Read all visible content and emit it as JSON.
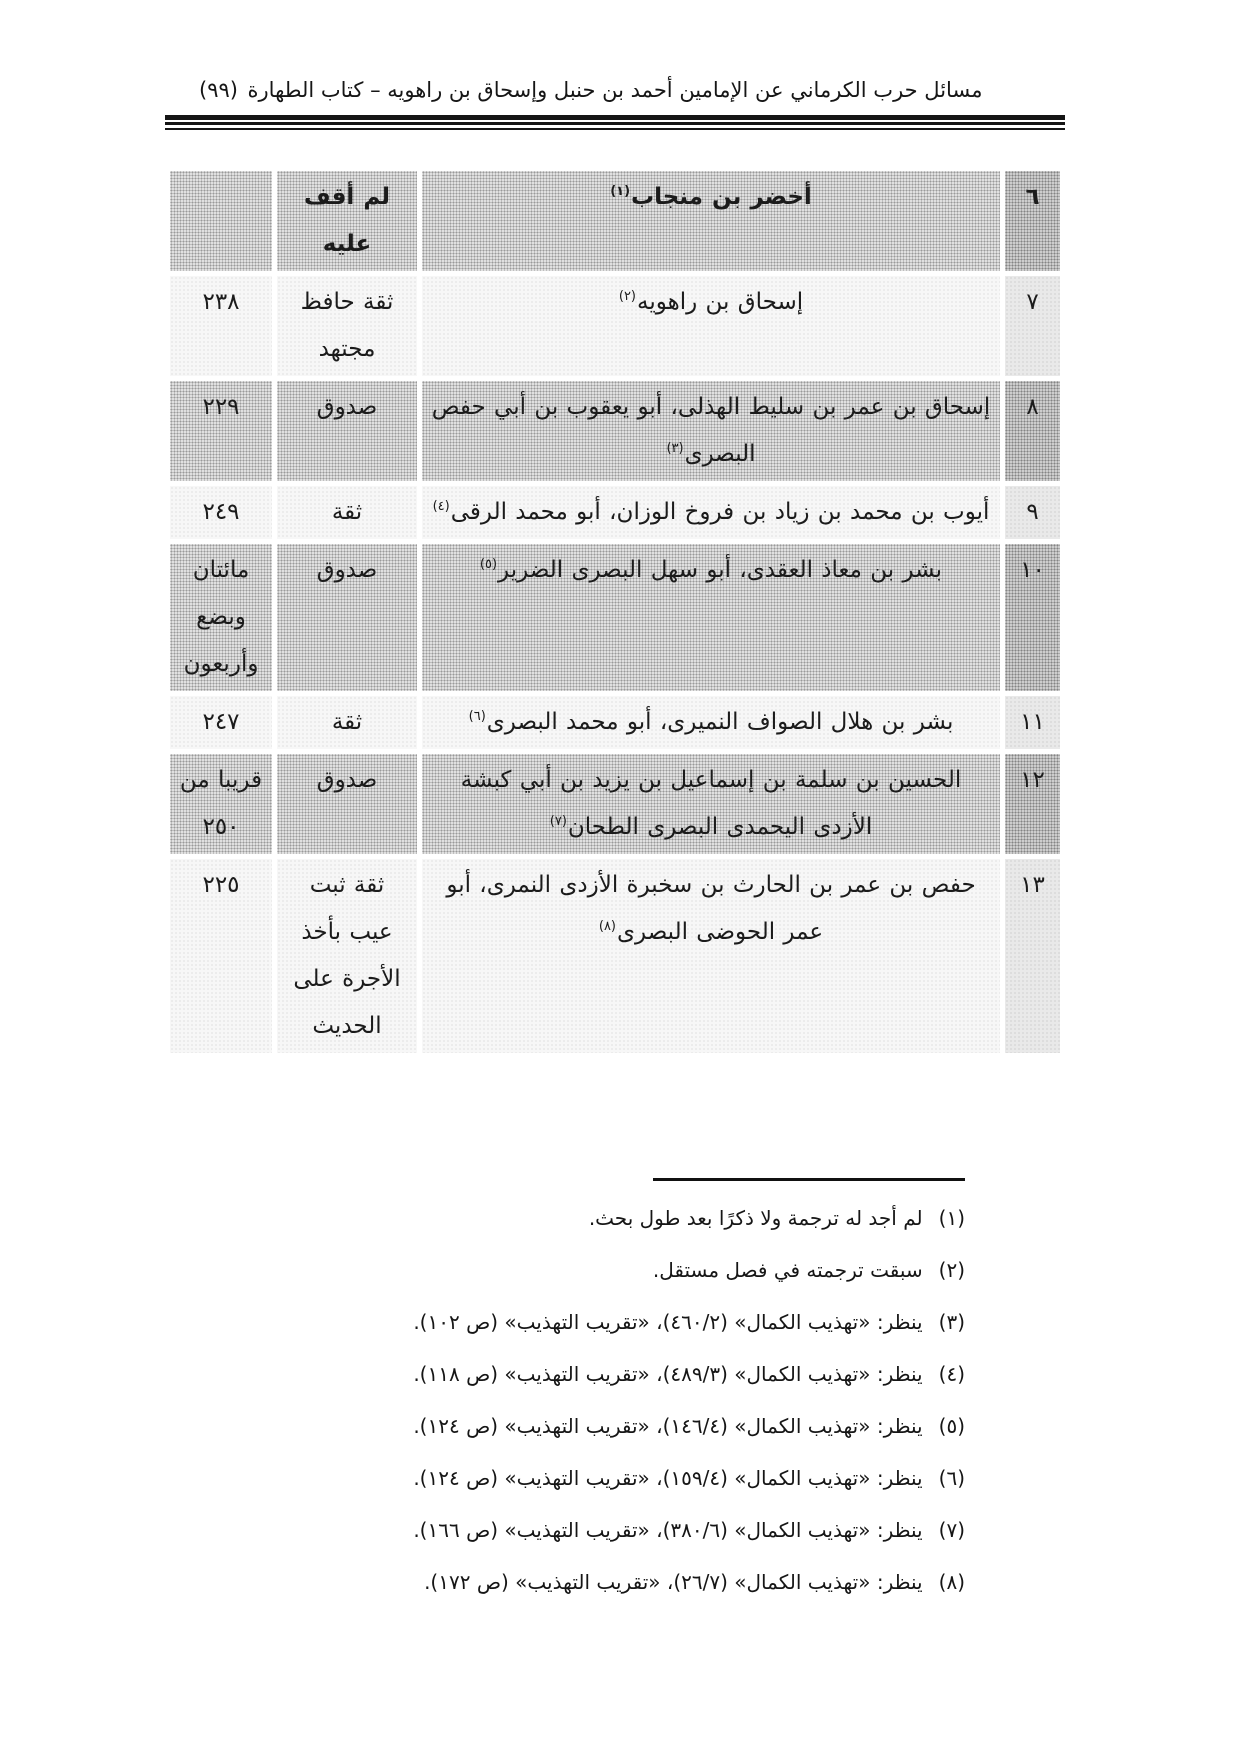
{
  "colors": {
    "shaded_row": "#d9d9d9",
    "light_row": "#f5f5f5",
    "rule": "#151515",
    "text": "#1b1b1b"
  },
  "header": {
    "title": "مسائل حرب الكرماني عن الإمامين أحمد بن حنبل وإسحاق بن راهويه – كتاب الطهارة",
    "page_number": "(٩٩)"
  },
  "table": {
    "rows": [
      {
        "num": "٦",
        "name": "أخضر بن منجاب",
        "marker": "(١)",
        "grade": "لم أقف عليه",
        "death": "",
        "shaded": true,
        "bold": true
      },
      {
        "num": "٧",
        "name": "إسحاق بن راهويه",
        "marker": "(٢)",
        "grade": "ثقة حافظ مجتهد",
        "death": "٢٣٨",
        "shaded": false,
        "bold": false
      },
      {
        "num": "٨",
        "name": "إسحاق بن عمر بن سليط الهذلى، أبو يعقوب بن أبي حفص البصرى",
        "marker": "(٣)",
        "grade": "صدوق",
        "death": "٢٢٩",
        "shaded": true,
        "bold": false
      },
      {
        "num": "٩",
        "name": "أيوب بن محمد بن زياد بن فروخ الوزان، أبو محمد الرقى",
        "marker": "(٤)",
        "grade": "ثقة",
        "death": "٢٤٩",
        "shaded": false,
        "bold": false
      },
      {
        "num": "١٠",
        "name": "بشر بن معاذ العقدى، أبو سهل البصرى الضرير",
        "marker": "(٥)",
        "grade": "صدوق",
        "death": "مائتان وبضع وأربعون",
        "shaded": true,
        "bold": false
      },
      {
        "num": "١١",
        "name": "بشر بن هلال الصواف النميرى، أبو محمد البصرى",
        "marker": "(٦)",
        "grade": "ثقة",
        "death": "٢٤٧",
        "shaded": false,
        "bold": false
      },
      {
        "num": "١٢",
        "name": "الحسين بن سلمة بن إسماعيل بن يزيد بن أبي كبشة الأزدى اليحمدى البصرى الطحان",
        "marker": "(٧)",
        "grade": "صدوق",
        "death": "قريبا من ٢٥٠",
        "shaded": true,
        "bold": false
      },
      {
        "num": "١٣",
        "name": "حفص بن عمر بن الحارث بن سخبرة الأزدى النمرى، أبو عمر الحوضى البصرى",
        "marker": "(٨)",
        "grade": "ثقة ثبت عيب بأخذ الأجرة على الحديث",
        "death": "٢٢٥",
        "shaded": false,
        "bold": false
      }
    ]
  },
  "footnotes": [
    {
      "num": "(١)",
      "text": "لم أجد له ترجمة ولا ذكرًا بعد طول بحث."
    },
    {
      "num": "(٢)",
      "text": "سبقت ترجمته في فصل مستقل."
    },
    {
      "num": "(٣)",
      "text": "ينظر: «تهذيب الكمال» (٤٦٠/٢)، «تقريب التهذيب» (ص ١٠٢)."
    },
    {
      "num": "(٤)",
      "text": "ينظر: «تهذيب الكمال» (٤٨٩/٣)، «تقريب التهذيب» (ص ١١٨)."
    },
    {
      "num": "(٥)",
      "text": "ينظر: «تهذيب الكمال» (١٤٦/٤)، «تقريب التهذيب» (ص ١٢٤)."
    },
    {
      "num": "(٦)",
      "text": "ينظر: «تهذيب الكمال» (١٥٩/٤)، «تقريب التهذيب» (ص ١٢٤)."
    },
    {
      "num": "(٧)",
      "text": "ينظر: «تهذيب الكمال» (٣٨٠/٦)، «تقريب التهذيب» (ص ١٦٦)."
    },
    {
      "num": "(٨)",
      "text": "ينظر: «تهذيب الكمال» (٢٦/٧)، «تقريب التهذيب» (ص ١٧٢)."
    }
  ]
}
